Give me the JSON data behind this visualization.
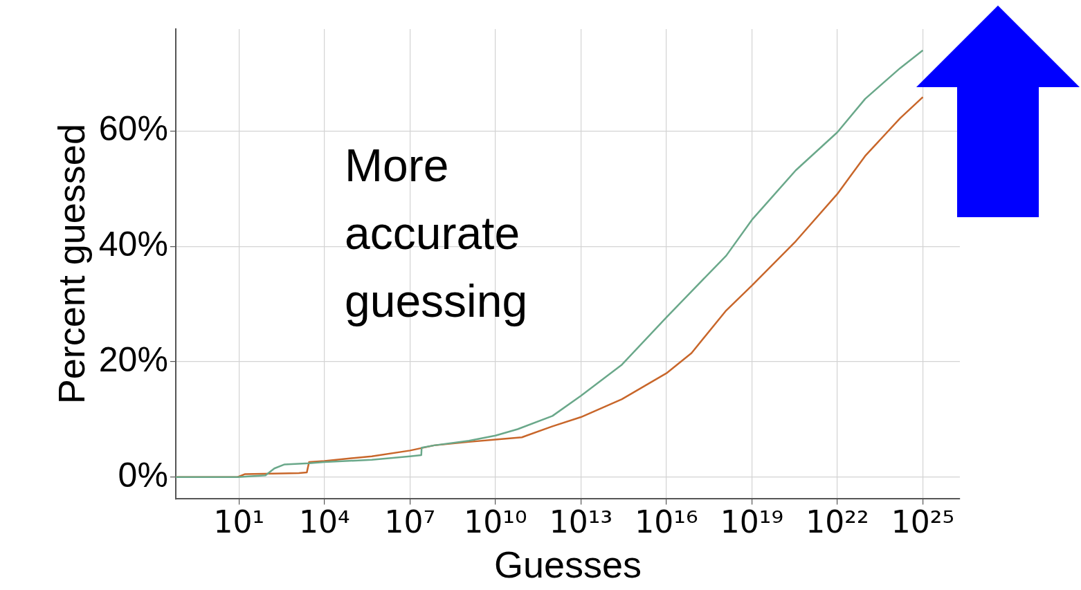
{
  "chart_data": {
    "type": "line",
    "xlabel": "Guesses",
    "ylabel": "Percent guessed",
    "annotations": [
      "More accurate guessing"
    ],
    "log": "x",
    "grid": true,
    "marker": "none",
    "xlim": [
      0.06,
      2e+26
    ],
    "xticks": [
      {
        "value": 10,
        "label": "10¹"
      },
      {
        "value": 10000.0,
        "label": "10⁴"
      },
      {
        "value": 10000000.0,
        "label": "10⁷"
      },
      {
        "value": 10000000000.0,
        "label": "10¹⁰"
      },
      {
        "value": 10000000000000.0,
        "label": "10¹³"
      },
      {
        "value": 1e+16,
        "label": "10¹⁶"
      },
      {
        "value": 1e+19,
        "label": "10¹⁹"
      },
      {
        "value": 1e+22,
        "label": "10²²"
      },
      {
        "value": 1e+25,
        "label": "10²⁵"
      }
    ],
    "ylim": [
      -3.8,
      77.7
    ],
    "yticks": [
      {
        "value": 0,
        "label": "0%"
      },
      {
        "value": 20,
        "label": "20%"
      },
      {
        "value": 40,
        "label": "40%"
      },
      {
        "value": 60,
        "label": "60%"
      }
    ],
    "series": [
      {
        "color": "#6aa88a",
        "x": [
          0.06,
          8.9,
          85,
          174,
          398,
          2884,
          10000.0,
          457000.0,
          10000000.0,
          25000000.0,
          25700000.0,
          70800000.0,
          1170000000.0,
          10000000000.0,
          60000000000.0,
          1000000000000.0,
          10000000000000.0,
          275000000000000.0,
          1e+16,
          7.6e+16,
          1.26e+18,
          1e+19,
          3.47e+20,
          1e+22,
          9.5e+22,
          1.58e+24,
          1e+25
        ],
        "values": [
          0,
          0,
          0.3,
          1.5,
          2.2,
          2.4,
          2.6,
          3.0,
          3.6,
          3.8,
          5.1,
          5.5,
          6.3,
          7.2,
          8.3,
          10.6,
          14.1,
          19.5,
          27.7,
          32.2,
          38.4,
          44.6,
          53.2,
          59.8,
          65.6,
          70.9,
          74
        ]
      },
      {
        "color": "#c8662a",
        "x": [
          0.06,
          8.9,
          15.8,
          1259,
          2400,
          2884,
          10000.0,
          457000.0,
          10000000.0,
          70800000.0,
          1170000000.0,
          10000000000.0,
          85000000000.0,
          1000000000000.0,
          10000000000000.0,
          275000000000000.0,
          1e+16,
          7.6e+16,
          1.26e+18,
          1e+19,
          3.47e+20,
          1e+22,
          9.5e+22,
          1.58e+24,
          1e+25
        ],
        "values": [
          0,
          0,
          0.5,
          0.7,
          0.8,
          2.6,
          2.8,
          3.6,
          4.6,
          5.5,
          6.1,
          6.5,
          6.9,
          8.8,
          10.4,
          13.5,
          18,
          21.5,
          28.9,
          33.2,
          40.9,
          49.1,
          55.7,
          62.2,
          65.9
        ]
      }
    ]
  }
}
